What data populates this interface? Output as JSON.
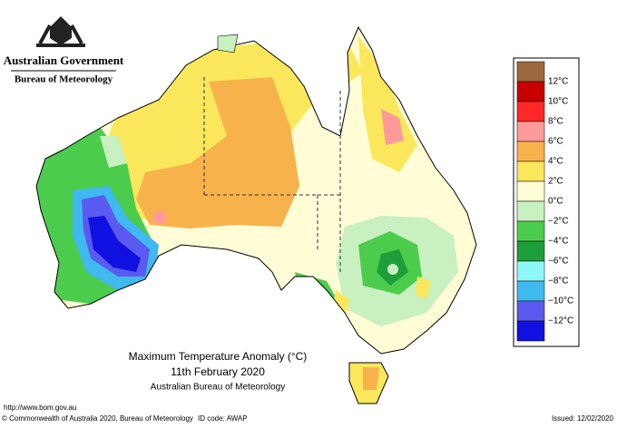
{
  "header": {
    "government": "Australian Government",
    "bureau": "Bureau of Meteorology"
  },
  "title": {
    "line1": "Maximum Temperature Anomaly (°C)",
    "line2": "11th February 2020",
    "line3": "Australian Bureau of Meteorology"
  },
  "legend": {
    "swatches": [
      "#9c6a3c",
      "#c80000",
      "#ff2828",
      "#ff9a9a",
      "#f8b24c",
      "#fbe75c",
      "#fffcd6",
      "#c8f0c0",
      "#4ccc4c",
      "#1e9e3a",
      "#8ef8f8",
      "#40b8f0",
      "#5a5af0",
      "#1010e0"
    ],
    "labels": [
      "12°C",
      "10°C",
      "8°C",
      "6°C",
      "4°C",
      "2°C",
      "0°C",
      "−2°C",
      "−4°C",
      "−6°C",
      "−8°C",
      "−10°C",
      "−12°C"
    ]
  },
  "footer": {
    "url": "http://www.bom.gov.au",
    "copyright": "© Commonwealth of Australia 2020, Bureau of Meteorology",
    "id_code": "ID code: AWAP",
    "issued": "Issued: 12/02/2020"
  }
}
